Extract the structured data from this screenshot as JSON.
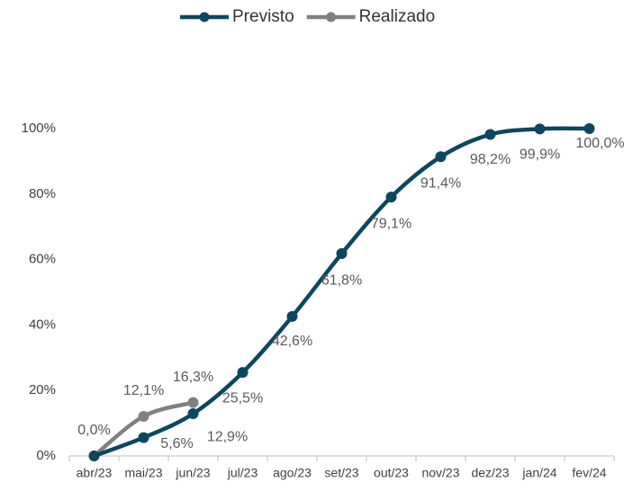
{
  "chart_data": {
    "type": "line",
    "categories": [
      "abr/23",
      "mai/23",
      "jun/23",
      "jul/23",
      "ago/23",
      "set/23",
      "out/23",
      "nov/23",
      "dez/23",
      "jan/24",
      "fev/24"
    ],
    "series": [
      {
        "name": "Previsto",
        "color": "#0b4760",
        "values": [
          0,
          5.6,
          12.9,
          25.5,
          42.6,
          61.8,
          79.1,
          91.4,
          98.2,
          99.9,
          100.0
        ],
        "value_labels": [
          null,
          "5,6%",
          "12,9%",
          "25,5%",
          "42,6%",
          "61,8%",
          "79,1%",
          "91,4%",
          "98,2%",
          "99,9%",
          "100,0%"
        ]
      },
      {
        "name": "Realizado",
        "color": "#808080",
        "values": [
          0.0,
          12.1,
          16.3,
          null,
          null,
          null,
          null,
          null,
          null,
          null,
          null
        ],
        "value_labels": [
          "0,0%",
          "12,1%",
          "16,3%",
          null,
          null,
          null,
          null,
          null,
          null,
          null,
          null
        ]
      }
    ],
    "ylim": [
      0,
      100
    ],
    "yticks": [
      {
        "value": 0,
        "label": "0%"
      },
      {
        "value": 20,
        "label": "20%"
      },
      {
        "value": 40,
        "label": "40%"
      },
      {
        "value": 60,
        "label": "60%"
      },
      {
        "value": 80,
        "label": "80%"
      },
      {
        "value": 100,
        "label": "100%"
      }
    ],
    "grid": false,
    "legend": "top"
  }
}
